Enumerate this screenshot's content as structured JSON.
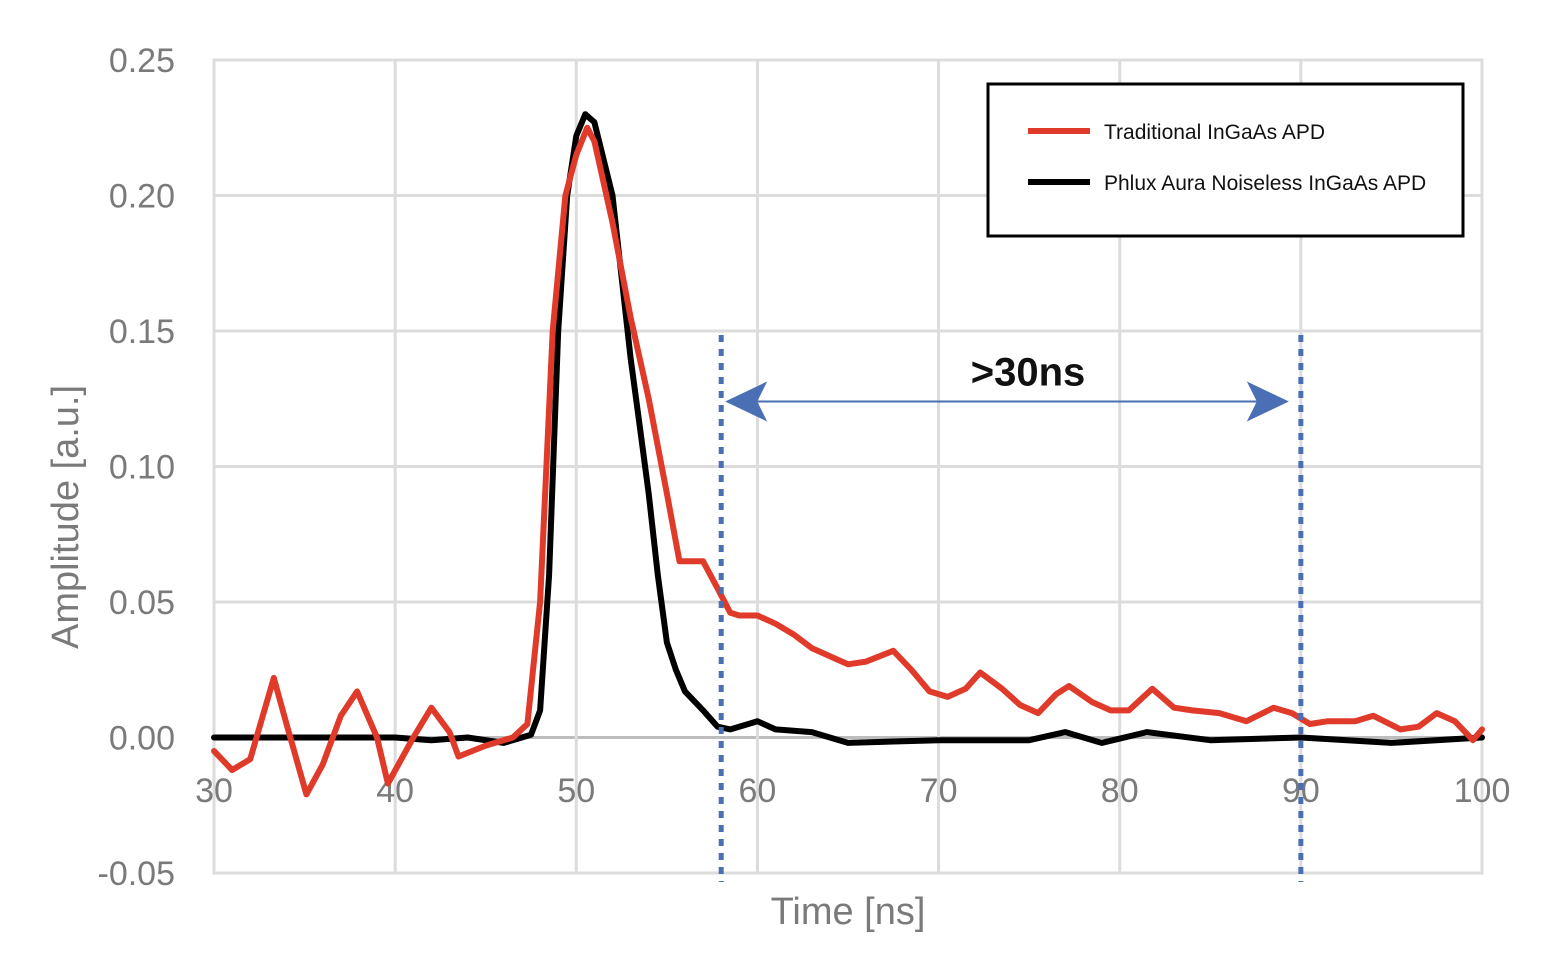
{
  "chart_data": {
    "type": "line",
    "title": "",
    "xlabel": "Time [ns]",
    "ylabel": "Amplitude [a.u.]",
    "xlim": [
      30,
      100
    ],
    "ylim": [
      -0.05,
      0.25
    ],
    "xticks": [
      30,
      40,
      50,
      60,
      70,
      80,
      90,
      100
    ],
    "yticks": [
      -0.05,
      0.0,
      0.05,
      0.1,
      0.15,
      0.2,
      0.25
    ],
    "ytick_labels": [
      "-0.05",
      "0.00",
      "0.05",
      "0.10",
      "0.15",
      "0.20",
      "0.25"
    ],
    "grid": true,
    "legend_position": "top-right",
    "series": [
      {
        "name": "Traditional InGaAs APD",
        "color": "#e03a2a",
        "x": [
          30,
          31,
          32,
          33.3,
          34,
          35.1,
          36,
          37,
          37.9,
          39,
          39.6,
          41,
          42,
          43,
          43.5,
          45,
          46.5,
          47.3,
          48,
          48.7,
          49.4,
          50,
          50.6,
          51,
          52,
          53,
          54,
          55,
          55.7,
          57,
          57.8,
          58.5,
          59,
          60,
          61,
          62,
          63,
          64,
          65,
          66,
          67.5,
          68.5,
          69.5,
          70.5,
          71.5,
          72.3,
          73.5,
          74.5,
          75.5,
          76.5,
          77.2,
          78.5,
          79.5,
          80.5,
          81.8,
          83,
          84,
          85.5,
          87,
          88.5,
          89.5,
          90.5,
          91.5,
          93,
          94,
          95.5,
          96.5,
          97.5,
          98.5,
          99.5,
          100
        ],
        "y": [
          -0.005,
          -0.012,
          -0.008,
          0.022,
          0.005,
          -0.021,
          -0.01,
          0.008,
          0.017,
          0.0,
          -0.017,
          0.0,
          0.011,
          0.002,
          -0.007,
          -0.003,
          0.0,
          0.005,
          0.05,
          0.15,
          0.2,
          0.215,
          0.225,
          0.22,
          0.19,
          0.155,
          0.125,
          0.09,
          0.065,
          0.065,
          0.055,
          0.046,
          0.045,
          0.045,
          0.042,
          0.038,
          0.033,
          0.03,
          0.027,
          0.028,
          0.032,
          0.025,
          0.017,
          0.015,
          0.018,
          0.024,
          0.018,
          0.012,
          0.009,
          0.016,
          0.019,
          0.013,
          0.01,
          0.01,
          0.018,
          0.011,
          0.01,
          0.009,
          0.006,
          0.011,
          0.009,
          0.005,
          0.006,
          0.006,
          0.008,
          0.003,
          0.004,
          0.009,
          0.006,
          -0.001,
          0.003
        ]
      },
      {
        "name": "Phlux Aura Noiseless InGaAs APD",
        "color": "#000000",
        "x": [
          30,
          35,
          38,
          40,
          42,
          44,
          46,
          47.5,
          48,
          48.5,
          49,
          49.5,
          50,
          50.5,
          51,
          52,
          53,
          53.5,
          54,
          54.5,
          55,
          55.5,
          56,
          57,
          57.8,
          58.5,
          59.5,
          60,
          61,
          63,
          65,
          70,
          75,
          77,
          79,
          81.5,
          85,
          90,
          95,
          100
        ],
        "y": [
          0,
          0,
          0,
          0,
          -0.001,
          0,
          -0.002,
          0.001,
          0.01,
          0.06,
          0.15,
          0.2,
          0.222,
          0.23,
          0.227,
          0.2,
          0.14,
          0.115,
          0.09,
          0.06,
          0.035,
          0.025,
          0.017,
          0.01,
          0.004,
          0.003,
          0.005,
          0.006,
          0.003,
          0.002,
          -0.002,
          -0.001,
          -0.001,
          0.002,
          -0.002,
          0.002,
          -0.001,
          0.0,
          -0.002,
          0.0
        ]
      }
    ],
    "annotations": {
      "label": ">30ns",
      "start_x": 58,
      "end_x": 90,
      "arrow_y": 0.124,
      "color": "#4a6fb5"
    }
  }
}
